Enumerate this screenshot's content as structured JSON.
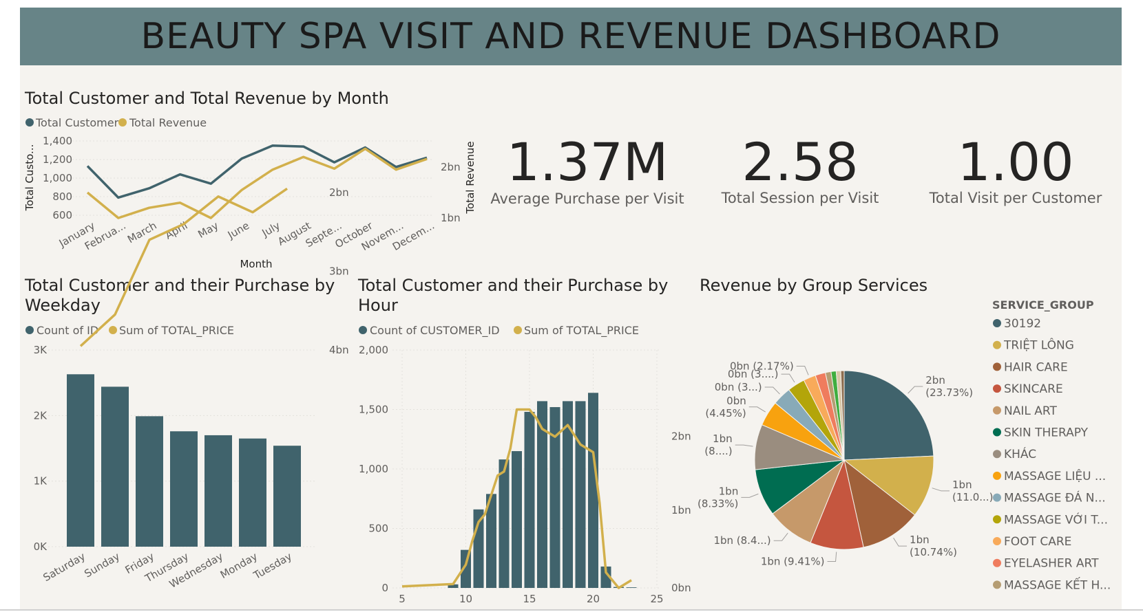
{
  "dashboard": {
    "title": "BEAUTY SPA VISIT AND REVENUE DASHBOARD"
  },
  "colors": {
    "header_bg": "#678487",
    "canvas_bg": "#f5f3ef",
    "series_dark": "#40636c",
    "series_gold": "#d2b04c"
  },
  "kpis": [
    {
      "value": "1.37M",
      "label": "Average Purchase per Visit"
    },
    {
      "value": "2.58",
      "label": "Total Session per Visit"
    },
    {
      "value": "1.00",
      "label": "Total Visit per Customer"
    }
  ],
  "chart_data": [
    {
      "type": "line",
      "title": "Total Customer and Total Revenue by Month",
      "xlabel": "Month",
      "ylabel": "Total Custo...",
      "y2label": "Total Revenue",
      "legend_placement": "top-left",
      "categories": [
        "January",
        "Februa...",
        "March",
        "April",
        "May",
        "June",
        "July",
        "August",
        "Septe...",
        "October",
        "Novem...",
        "Decem..."
      ],
      "y_ticks": [
        "1,400",
        "1,200",
        "1,000",
        "800",
        "600"
      ],
      "y_tick_values": [
        1400,
        1200,
        1000,
        800,
        600
      ],
      "y2_ticks": [
        "2bn",
        "1bn"
      ],
      "y2_tick_values": [
        2,
        1
      ],
      "ylim": [
        600,
        1400
      ],
      "y2lim": [
        1,
        2
      ],
      "series": [
        {
          "name": "Total Customer",
          "axis": "left",
          "values": [
            1130,
            790,
            890,
            1040,
            940,
            1210,
            1350,
            1340,
            1170,
            1330,
            1120,
            1220
          ]
        },
        {
          "name": "Total Revenue",
          "axis": "right",
          "values": [
            1.5,
            1.0,
            1.2,
            1.3,
            1.0,
            1.55,
            1.95,
            2.2,
            1.97,
            2.36,
            1.95,
            2.16
          ]
        }
      ]
    },
    {
      "type": "bar",
      "title": "Total Customer and their Purchase by Weekday",
      "title_lines": [
        "Total Customer and their Purchase by",
        "Weekday"
      ],
      "legend_placement": "top-left",
      "categories": [
        "Saturday",
        "Sunday",
        "Friday",
        "Thursday",
        "Wednesday",
        "Monday",
        "Tuesday"
      ],
      "y_ticks": [
        "3K",
        "2K",
        "1K",
        "0K"
      ],
      "y_tick_values": [
        3000,
        2000,
        1000,
        0
      ],
      "y2_ticks": [
        "4bn",
        "3bn",
        "2bn"
      ],
      "y2_tick_values": [
        4,
        3,
        2
      ],
      "ylim": [
        0,
        3000
      ],
      "y2lim": [
        1.5,
        4
      ],
      "series": [
        {
          "name": "Count of ID",
          "kind": "bar",
          "values": [
            2630,
            2440,
            1990,
            1760,
            1700,
            1650,
            1540
          ]
        },
        {
          "name": "Sum of TOTAL_PRICE",
          "kind": "line",
          "values": [
            3.95,
            3.55,
            2.6,
            2.4,
            2.05,
            2.25,
            1.95
          ]
        }
      ]
    },
    {
      "type": "bar",
      "title": "Total Customer and their Purchase by Hour",
      "title_lines": [
        "Total Customer and their Purchase by",
        "Hour"
      ],
      "legend_placement": "top-left",
      "x_ticks": [
        "5",
        "10",
        "15",
        "20",
        "25"
      ],
      "x_tick_values": [
        5,
        10,
        15,
        20,
        25
      ],
      "xlim": [
        5,
        25
      ],
      "y_ticks": [
        "2,000",
        "1,500",
        "1,000",
        "500",
        "0"
      ],
      "y_tick_values": [
        2000,
        1500,
        1000,
        500,
        0
      ],
      "y2_ticks": [
        "2bn",
        "1bn",
        "0bn"
      ],
      "y2_tick_values": [
        2,
        1,
        0
      ],
      "ylim": [
        0,
        2000
      ],
      "y2lim": [
        0,
        2.5
      ],
      "series": [
        {
          "name": "Count of CUSTOMER_ID",
          "kind": "bar",
          "x": [
            9,
            10,
            11,
            12,
            13,
            14,
            15,
            16,
            17,
            18,
            19,
            20,
            21,
            22,
            23
          ],
          "values": [
            30,
            320,
            660,
            790,
            1080,
            1150,
            1480,
            1570,
            1520,
            1570,
            1570,
            1640,
            180,
            8,
            5
          ]
        },
        {
          "name": "Sum of TOTAL_PRICE",
          "kind": "line",
          "x": [
            5,
            9,
            10,
            10.5,
            11,
            11.5,
            12,
            12.5,
            13,
            13.5,
            14,
            14.5,
            15,
            15.5,
            16,
            17,
            18,
            19,
            20,
            20.5,
            21,
            22,
            23
          ],
          "values": [
            0.02,
            0.05,
            0.3,
            0.6,
            0.85,
            0.95,
            1.2,
            1.45,
            1.5,
            1.8,
            2.3,
            2.3,
            2.3,
            2.2,
            2.05,
            1.95,
            2.1,
            1.85,
            1.75,
            1.1,
            0.2,
            0.0,
            0.1
          ]
        }
      ]
    },
    {
      "type": "pie",
      "title": "Revenue by Group Services",
      "legend_title": "SERVICE_GROUP",
      "legend_placement": "right",
      "slices": [
        {
          "name": "30192",
          "percent": 23.73,
          "label": [
            "2bn",
            "(23.73%)"
          ],
          "color": "#40636c"
        },
        {
          "name": "TRIỆT LÔNG",
          "percent": 11.0,
          "label": [
            "1bn",
            "(11.0...)"
          ],
          "color": "#d2b04c"
        },
        {
          "name": "HAIR CARE",
          "percent": 10.74,
          "label": [
            "1bn",
            "(10.74%)"
          ],
          "color": "#a0613a"
        },
        {
          "name": "SKINCARE",
          "percent": 9.41,
          "label": [
            "1bn (9.41%)"
          ],
          "color": "#c5563f"
        },
        {
          "name": "NAIL ART",
          "percent": 8.4,
          "label": [
            "1bn (8.4...)"
          ],
          "color": "#c6996a"
        },
        {
          "name": "SKIN THERAPY",
          "percent": 8.33,
          "label": [
            "1bn",
            "(8.33%)"
          ],
          "color": "#006d51"
        },
        {
          "name": "KHÁC",
          "percent": 8.0,
          "label": [
            "1bn",
            "(8....)"
          ],
          "color": "#9a8d7f"
        },
        {
          "name": "MASSAGE LIỆU ...",
          "percent": 4.45,
          "label": [
            "0bn",
            "(4.45%)"
          ],
          "color": "#f8a20f"
        },
        {
          "name": "MASSAGE ĐÁ N...",
          "percent": 3.3,
          "label": [
            "0bn (3...)"
          ],
          "color": "#88aab8"
        },
        {
          "name": "MASSAGE VỚI T...",
          "percent": 3.1,
          "label": [
            "0bn (3....)"
          ],
          "color": "#b3a50a"
        },
        {
          "name": "FOOT CARE",
          "percent": 2.17,
          "label": [
            "0bn (2.17%)"
          ],
          "color": "#f8aa5a"
        },
        {
          "name": "EYELASHER ART",
          "percent": 1.8,
          "label": [],
          "color": "#ef7c5e"
        },
        {
          "name": "MASSAGE KẾT H...",
          "percent": 1.0,
          "label": [],
          "color": "#b59d73"
        },
        {
          "name": "",
          "percent": 0.9,
          "label": [],
          "color": "#3fae3f"
        },
        {
          "name": "",
          "percent": 0.8,
          "label": [],
          "color": "#d8c8a8"
        },
        {
          "name": "",
          "percent": 0.6,
          "label": [],
          "color": "#8c6d4f"
        }
      ]
    }
  ]
}
